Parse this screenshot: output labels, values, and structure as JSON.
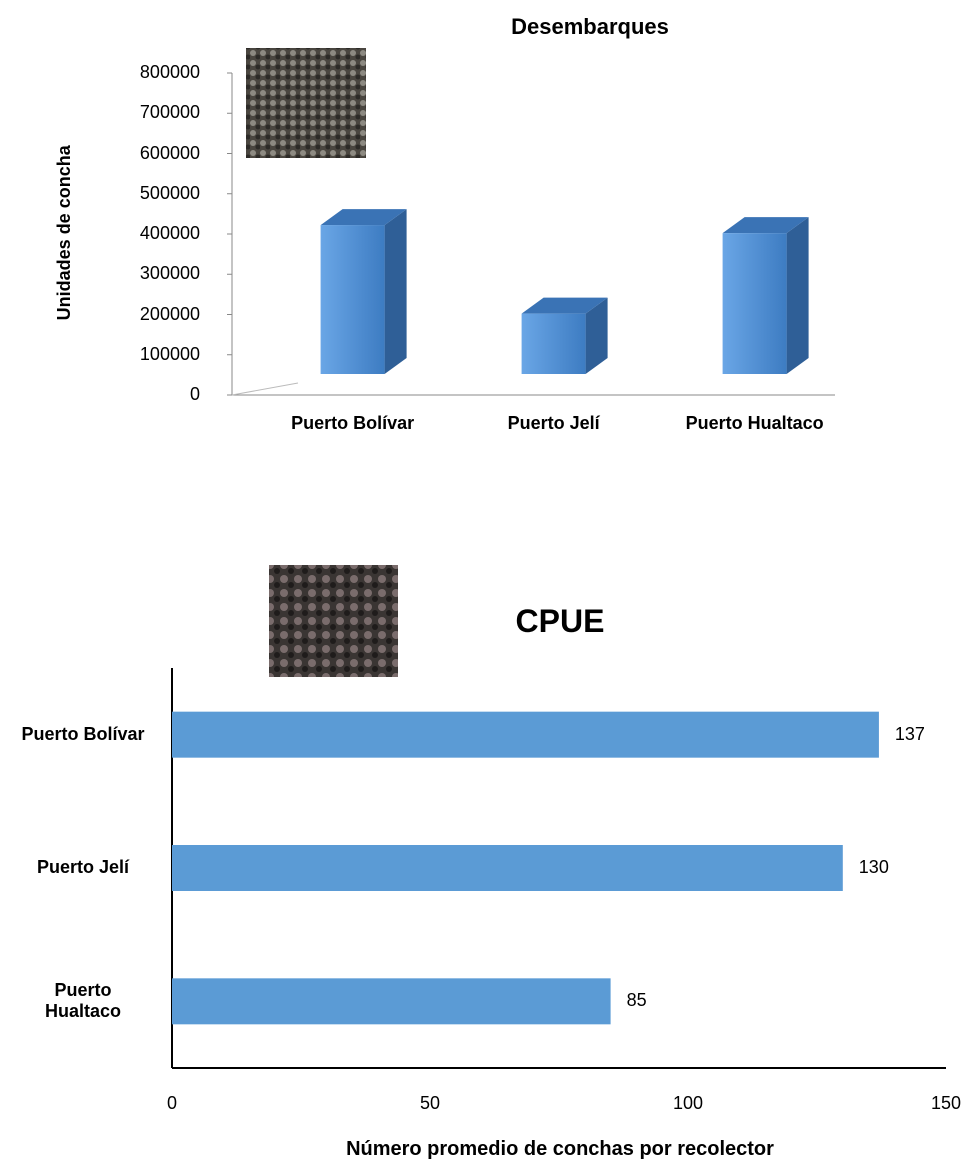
{
  "chart_data": [
    {
      "type": "bar3d",
      "title": "Desembarques",
      "y_label": "Unidades de concha",
      "categories": [
        "Puerto Bolívar",
        "Puerto Jelí",
        "Puerto Hualtaco"
      ],
      "values": [
        370000,
        150000,
        350000
      ],
      "color": "#4a86c8",
      "ylim": [
        0,
        800000
      ],
      "yticks": [
        0,
        100000,
        200000,
        300000,
        400000,
        500000,
        600000,
        700000,
        800000
      ]
    },
    {
      "type": "barh",
      "title": "CPUE",
      "x_label": "Número promedio de conchas por recolector",
      "categories": [
        "Puerto Bolívar",
        "Puerto Jelí",
        "Puerto Hualtaco"
      ],
      "values": [
        137,
        130,
        85
      ],
      "color": "#5b9bd5",
      "xlim": [
        0,
        150
      ],
      "xticks": [
        0,
        50,
        100,
        150
      ]
    }
  ]
}
